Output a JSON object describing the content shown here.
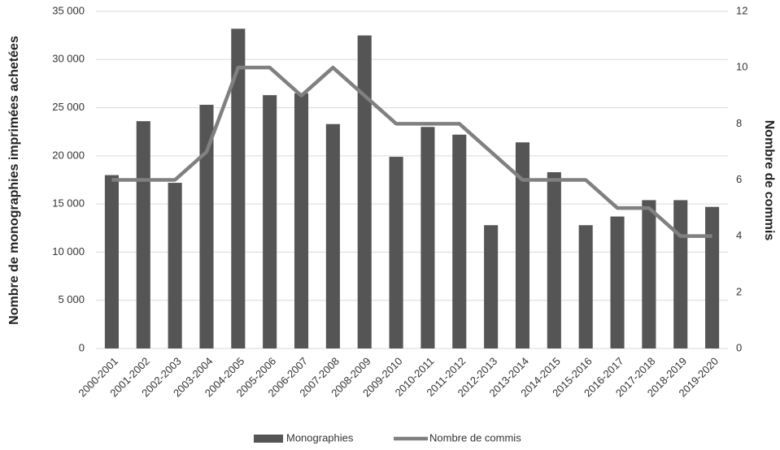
{
  "chart_data": {
    "type": "bar_line",
    "categories": [
      "2000-2001",
      "2001-2002",
      "2002-2003",
      "2003-2004",
      "2004-2005",
      "2005-2006",
      "2006-2007",
      "2007-2008",
      "2008-2009",
      "2009-2010",
      "2010-2011",
      "2011-2012",
      "2012-2013",
      "2013-2014",
      "2014-2015",
      "2015-2016",
      "2016-2017",
      "2017-2018",
      "2018-2019",
      "2019-2020"
    ],
    "series": [
      {
        "name": "Monographies",
        "color": "#555555",
        "values": [
          18000,
          23600,
          17200,
          25300,
          33200,
          26300,
          26500,
          23300,
          32500,
          19900,
          23000,
          22200,
          12800,
          21400,
          18300,
          12800,
          13700,
          15400,
          15400,
          14700
        ]
      },
      {
        "name": "Nombre de commis",
        "color": "#808080",
        "axis": "y2",
        "values": [
          6,
          6,
          6,
          7,
          10,
          10,
          9,
          10,
          9,
          8,
          8,
          8,
          7,
          6,
          6,
          6,
          5,
          5,
          4,
          4
        ]
      }
    ],
    "ylabel": "Nombre de monographies imprimées achetées",
    "y2label": "Nombre de commis",
    "ylim": [
      0,
      35000
    ],
    "yticks": [
      0,
      {
        "value": 5000,
        "label": "5 000"
      },
      {
        "value": 10000,
        "label": "10 000"
      },
      {
        "value": 15000,
        "label": "15 000"
      },
      {
        "value": 20000,
        "label": "20 000"
      },
      {
        "value": 25000,
        "label": "25 000"
      },
      {
        "value": 30000,
        "label": "30 000"
      },
      {
        "value": 35000,
        "label": "35 000"
      }
    ],
    "y2lim": [
      0,
      12
    ],
    "y2ticks": [
      0,
      2,
      4,
      6,
      8,
      10,
      12
    ],
    "grid": true,
    "legend": "bottom"
  }
}
